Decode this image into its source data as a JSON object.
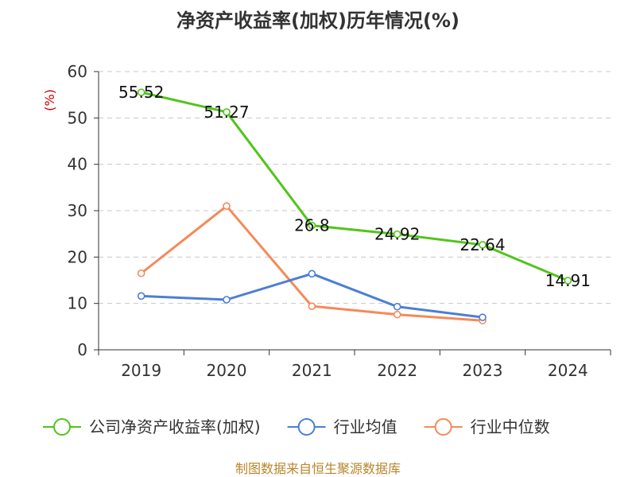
{
  "chart_data": {
    "type": "line",
    "title": "净资产收益率(加权)历年情况(%)",
    "ylabel": "(%)",
    "categories": [
      "2019",
      "2020",
      "2021",
      "2022",
      "2023",
      "2024"
    ],
    "ylim": [
      0,
      60
    ],
    "yticks": [
      0,
      10,
      20,
      30,
      40,
      50,
      60
    ],
    "grid": true,
    "legend_position": "bottom",
    "series": [
      {
        "name": "公司净资产收益率(加权)",
        "color": "#52c41a",
        "values": [
          55.52,
          51.27,
          26.8,
          24.92,
          22.64,
          14.91
        ],
        "data_labels": [
          "55.52",
          "51.27",
          "26.8",
          "24.92",
          "22.64",
          "14.91"
        ]
      },
      {
        "name": "行业均值",
        "color": "#4a7fd6",
        "values": [
          11.6,
          10.8,
          16.4,
          9.3,
          7.0,
          null
        ]
      },
      {
        "name": "行业中位数",
        "color": "#f5895a",
        "values": [
          16.5,
          31.0,
          9.4,
          7.6,
          6.3,
          null
        ]
      }
    ],
    "source_text": "制图数据来自恒生聚源数据库"
  }
}
